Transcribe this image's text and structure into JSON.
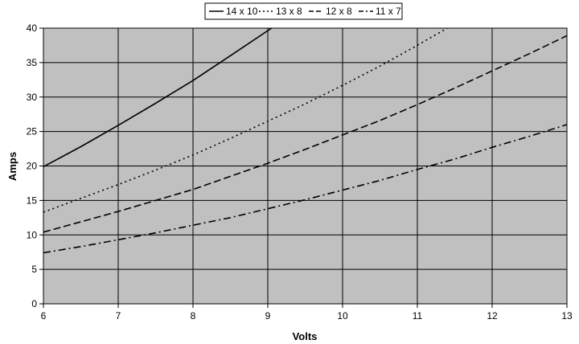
{
  "chart_data": {
    "type": "line",
    "title": "",
    "xlabel": "Volts",
    "ylabel": "Amps",
    "xlim": [
      6,
      13
    ],
    "ylim": [
      0,
      40
    ],
    "xticks": [
      "6",
      "7",
      "8",
      "9",
      "10",
      "11",
      "12",
      "13"
    ],
    "yticks": [
      "0",
      "5",
      "10",
      "15",
      "20",
      "25",
      "30",
      "35",
      "40"
    ],
    "grid": true,
    "legend_position": "top-center",
    "plot_background": "#c0c0c0",
    "series_color": "#000000",
    "series": [
      {
        "name": "14 x 10",
        "dash": "solid",
        "x": [
          6,
          6.5,
          7,
          7.5,
          8,
          8.5,
          9.05
        ],
        "y": [
          19.9,
          22.8,
          25.9,
          29.1,
          32.4,
          36.0,
          40.0
        ]
      },
      {
        "name": "13 x 8",
        "dash": "dotted",
        "x": [
          6,
          6.5,
          7,
          7.5,
          8,
          8.5,
          9,
          9.5,
          10,
          10.5,
          11,
          11.4
        ],
        "y": [
          13.3,
          15.3,
          17.3,
          19.4,
          21.6,
          24.0,
          26.5,
          29.0,
          31.7,
          34.5,
          37.5,
          40.0
        ]
      },
      {
        "name": "12 x 8",
        "dash": "dashed",
        "x": [
          6,
          6.5,
          7,
          7.5,
          8,
          8.5,
          9,
          9.5,
          10,
          10.5,
          11,
          11.5,
          12,
          12.5,
          13
        ],
        "y": [
          10.4,
          11.9,
          13.4,
          15.0,
          16.6,
          18.5,
          20.4,
          22.4,
          24.5,
          26.6,
          28.9,
          31.3,
          33.8,
          36.3,
          38.9
        ]
      },
      {
        "name": "11 x 7",
        "dash": "dash-dot",
        "x": [
          6,
          6.5,
          7,
          7.5,
          8,
          8.5,
          9,
          9.5,
          10,
          10.5,
          11,
          11.5,
          12,
          12.5,
          13
        ],
        "y": [
          7.4,
          8.3,
          9.3,
          10.3,
          11.4,
          12.5,
          13.8,
          15.1,
          16.5,
          17.9,
          19.5,
          21.0,
          22.7,
          24.3,
          26.0
        ]
      }
    ]
  }
}
